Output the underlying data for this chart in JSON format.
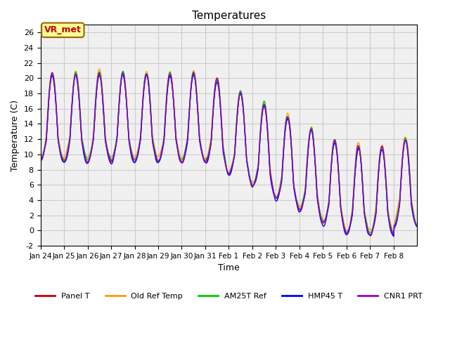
{
  "title": "Temperatures",
  "xlabel": "Time",
  "ylabel": "Temperature (C)",
  "ylim": [
    -2,
    27
  ],
  "yticks": [
    -2,
    0,
    2,
    4,
    6,
    8,
    10,
    12,
    14,
    16,
    18,
    20,
    22,
    24,
    26
  ],
  "xtick_labels": [
    "Jan 24",
    "Jan 25",
    "Jan 26",
    "Jan 27",
    "Jan 28",
    "Jan 29",
    "Jan 30",
    "Jan 31",
    "Feb 1",
    "Feb 2",
    "Feb 3",
    "Feb 4",
    "Feb 5",
    "Feb 6",
    "Feb 7",
    "Feb 8"
  ],
  "series": [
    {
      "label": "Panel T",
      "color": "#cc0000",
      "lw": 1.0
    },
    {
      "label": "Old Ref Temp",
      "color": "#ff9900",
      "lw": 1.0
    },
    {
      "label": "AM25T Ref",
      "color": "#00cc00",
      "lw": 1.0
    },
    {
      "label": "HMP45 T",
      "color": "#0000ff",
      "lw": 1.0
    },
    {
      "label": "CNR1 PRT",
      "color": "#9900cc",
      "lw": 1.0
    }
  ],
  "annotation_text": "VR_met",
  "annotation_color": "#cc0000",
  "annotation_bg": "#ffff99",
  "annotation_edge": "#996600",
  "background_color": "#ffffff",
  "axes_facecolor": "#f0f0f0",
  "grid_color": "#cccccc",
  "figsize": [
    6.4,
    4.8
  ],
  "dpi": 100,
  "n_days": 16
}
